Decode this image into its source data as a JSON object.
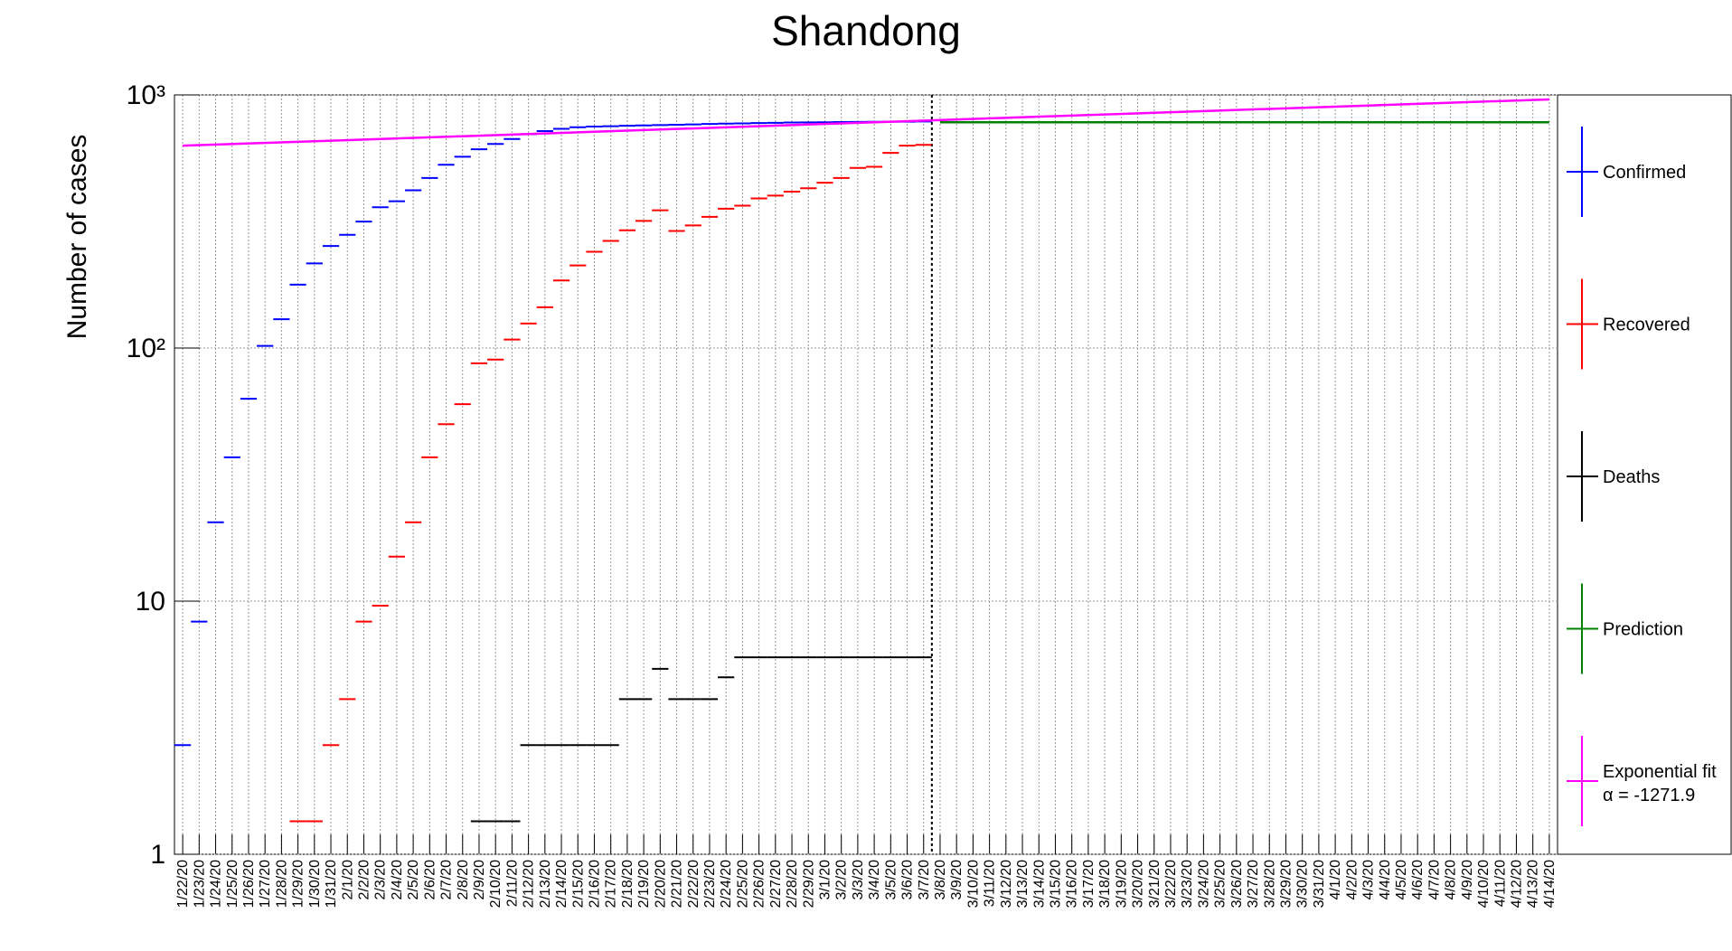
{
  "chart_data": {
    "type": "marker",
    "title": "Shandong",
    "y_label": "Number of cases",
    "log_y": true,
    "grid": true,
    "ylim": [
      1,
      1000
    ],
    "yticks": [
      1,
      10,
      {
        "value": 100,
        "label": "10²"
      },
      {
        "value": 1000,
        "label": "10³"
      }
    ],
    "categories": [
      "1/22/20",
      "1/23/20",
      "1/24/20",
      "1/25/20",
      "1/26/20",
      "1/27/20",
      "1/28/20",
      "1/29/20",
      "1/30/20",
      "1/31/20",
      "2/1/20",
      "2/2/20",
      "2/3/20",
      "2/4/20",
      "2/5/20",
      "2/6/20",
      "2/7/20",
      "2/8/20",
      "2/9/20",
      "2/10/20",
      "2/11/20",
      "2/12/20",
      "2/13/20",
      "2/14/20",
      "2/15/20",
      "2/16/20",
      "2/17/20",
      "2/18/20",
      "2/19/20",
      "2/20/20",
      "2/21/20",
      "2/22/20",
      "2/23/20",
      "2/24/20",
      "2/25/20",
      "2/26/20",
      "2/27/20",
      "2/28/20",
      "2/29/20",
      "3/1/20",
      "3/2/20",
      "3/3/20",
      "3/4/20",
      "3/5/20",
      "3/6/20",
      "3/7/20",
      "3/8/20",
      "3/9/20",
      "3/10/20",
      "3/11/20",
      "3/12/20",
      "3/13/20",
      "3/14/20",
      "3/15/20",
      "3/16/20",
      "3/17/20",
      "3/18/20",
      "3/19/20",
      "3/20/20",
      "3/21/20",
      "3/22/20",
      "3/23/20",
      "3/24/20",
      "3/25/20",
      "3/26/20",
      "3/27/20",
      "3/28/20",
      "3/29/20",
      "3/30/20",
      "3/31/20",
      "4/1/20",
      "4/2/20",
      "4/3/20",
      "4/4/20",
      "4/5/20",
      "4/6/20",
      "4/7/20",
      "4/8/20",
      "4/9/20",
      "4/10/20",
      "4/11/20",
      "4/12/20",
      "4/13/20",
      "4/14/20"
    ],
    "split_at": "3/8/20",
    "series": [
      {
        "name": "Confirmed",
        "color": "#0000ff",
        "values": [
          2.7,
          8.3,
          20.5,
          37,
          63,
          102,
          130,
          178,
          216,
          253,
          280,
          316,
          360,
          380,
          420,
          470,
          530,
          570,
          610,
          640,
          670,
          700,
          720,
          735,
          745,
          750,
          752,
          755,
          758,
          760,
          762,
          765,
          768,
          770,
          772,
          774,
          776,
          778,
          779,
          780,
          781,
          782,
          783,
          784,
          784,
          785,
          null,
          null,
          null,
          null,
          null,
          null,
          null,
          null,
          null,
          null,
          null,
          null,
          null,
          null,
          null,
          null,
          null,
          null,
          null,
          null,
          null,
          null,
          null,
          null,
          null,
          null,
          null,
          null,
          null,
          null,
          null,
          null,
          null,
          null,
          null,
          null,
          null,
          null
        ]
      },
      {
        "name": "Recovered",
        "color": "#ff0000",
        "values": [
          null,
          null,
          null,
          null,
          null,
          null,
          null,
          1.35,
          1.35,
          2.7,
          4.1,
          8.3,
          9.6,
          15,
          20.5,
          37,
          50,
          60,
          87,
          90,
          108,
          125,
          145,
          185,
          212,
          240,
          265,
          292,
          318,
          350,
          290,
          305,
          330,
          355,
          365,
          390,
          400,
          415,
          428,
          450,
          470,
          515,
          520,
          590,
          630,
          635,
          null,
          null,
          null,
          null,
          null,
          null,
          null,
          null,
          null,
          null,
          null,
          null,
          null,
          null,
          null,
          null,
          null,
          null,
          null,
          null,
          null,
          null,
          null,
          null,
          null,
          null,
          null,
          null,
          null,
          null,
          null,
          null,
          null,
          null,
          null,
          null,
          null,
          null
        ]
      },
      {
        "name": "Deaths",
        "color": "#000000",
        "values": [
          null,
          null,
          null,
          null,
          null,
          null,
          null,
          null,
          null,
          null,
          null,
          null,
          null,
          null,
          null,
          null,
          null,
          null,
          1.35,
          1.35,
          1.35,
          2.7,
          2.7,
          2.7,
          2.7,
          2.7,
          2.7,
          4.1,
          4.1,
          5.4,
          4.1,
          4.1,
          4.1,
          5,
          6,
          6,
          6,
          6,
          6,
          6,
          6,
          6,
          6,
          6,
          6,
          6,
          null,
          null,
          null,
          null,
          null,
          null,
          null,
          null,
          null,
          null,
          null,
          null,
          null,
          null,
          null,
          null,
          null,
          null,
          null,
          null,
          null,
          null,
          null,
          null,
          null,
          null,
          null,
          null,
          null,
          null,
          null,
          null,
          null,
          null,
          null,
          null,
          null,
          null
        ]
      },
      {
        "name": "Prediction",
        "color": "#008000",
        "x": [
          "3/8/20",
          "4/14/20"
        ],
        "values": [
          780,
          780
        ]
      },
      {
        "name": "Exponential fit",
        "note": "α = -1271.9",
        "color": "#ff00ff",
        "x": [
          "1/22/20",
          "4/14/20"
        ],
        "values": [
          630,
          960
        ]
      }
    ]
  }
}
